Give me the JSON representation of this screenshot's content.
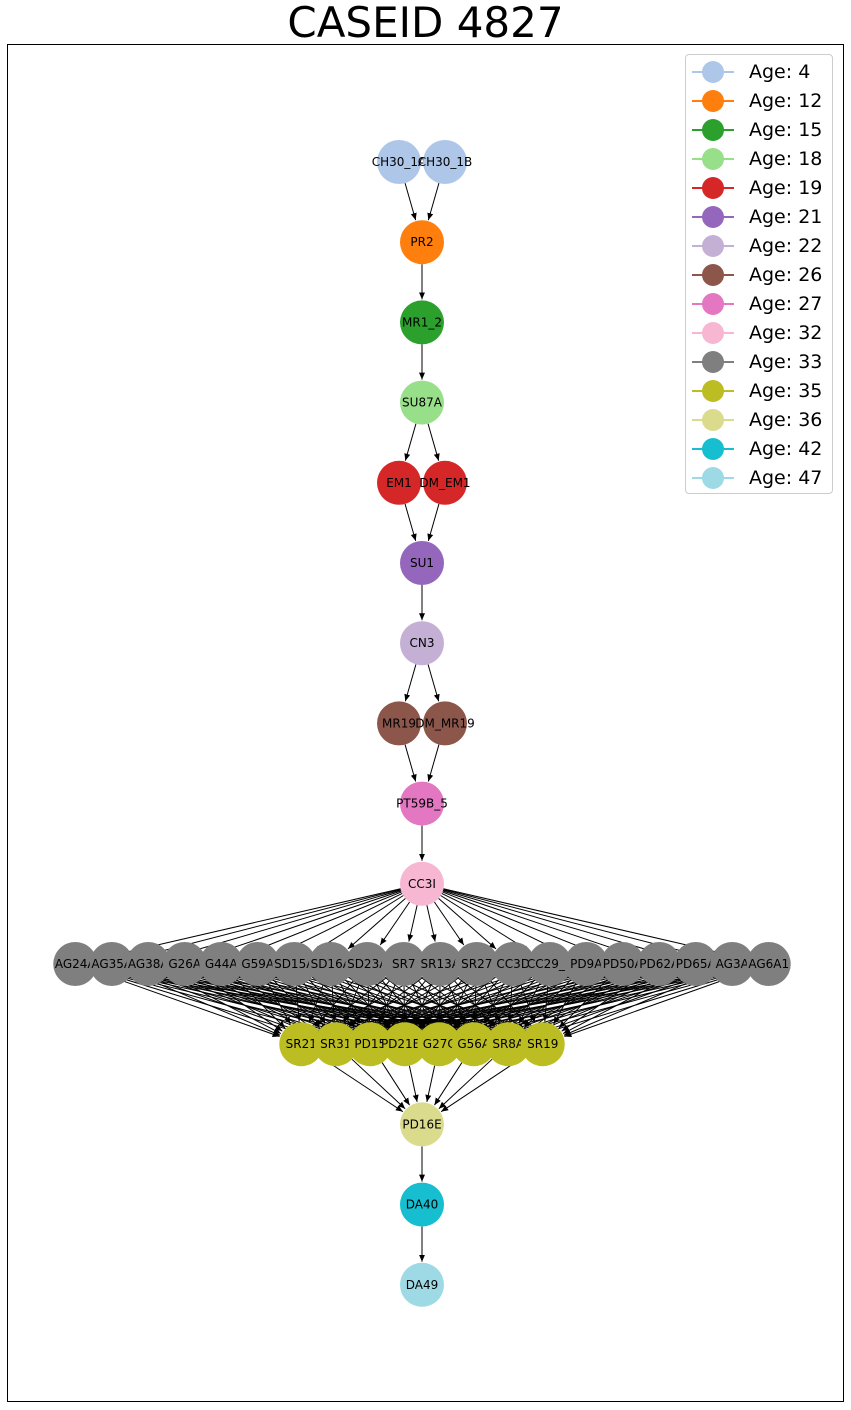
{
  "title": "CASEID 4827",
  "legend": [
    {
      "label": "Age: 4",
      "color": "#aec7e8"
    },
    {
      "label": "Age: 12",
      "color": "#ff7f0e"
    },
    {
      "label": "Age: 15",
      "color": "#2ca02c"
    },
    {
      "label": "Age: 18",
      "color": "#98df8a"
    },
    {
      "label": "Age: 19",
      "color": "#d62728"
    },
    {
      "label": "Age: 21",
      "color": "#9467bd"
    },
    {
      "label": "Age: 22",
      "color": "#c5b0d5"
    },
    {
      "label": "Age: 26",
      "color": "#8c564b"
    },
    {
      "label": "Age: 27",
      "color": "#e377c2"
    },
    {
      "label": "Age: 32",
      "color": "#f7b6d2"
    },
    {
      "label": "Age: 33",
      "color": "#7f7f7f"
    },
    {
      "label": "Age: 35",
      "color": "#bcbd22"
    },
    {
      "label": "Age: 36",
      "color": "#dbdb8d"
    },
    {
      "label": "Age: 42",
      "color": "#17becf"
    },
    {
      "label": "Age: 47",
      "color": "#9edae5"
    }
  ],
  "levels": [
    {
      "age": "Age: 4",
      "nodes": [
        "CH30_1A",
        "CH30_1B"
      ]
    },
    {
      "age": "Age: 12",
      "nodes": [
        "PR2"
      ]
    },
    {
      "age": "Age: 15",
      "nodes": [
        "MR1_2"
      ]
    },
    {
      "age": "Age: 18",
      "nodes": [
        "SU87A"
      ]
    },
    {
      "age": "Age: 19",
      "nodes": [
        "EM1",
        "DM_EM1"
      ]
    },
    {
      "age": "Age: 21",
      "nodes": [
        "SU1"
      ]
    },
    {
      "age": "Age: 22",
      "nodes": [
        "CN3"
      ]
    },
    {
      "age": "Age: 26",
      "nodes": [
        "MR19",
        "DM_MR19"
      ]
    },
    {
      "age": "Age: 27",
      "nodes": [
        "PT59B_5"
      ]
    },
    {
      "age": "Age: 32",
      "nodes": [
        "CC3I"
      ]
    },
    {
      "age": "Age: 33",
      "nodes": [
        "AG24A",
        "AG35A",
        "AG38A",
        "G26A",
        "G44A",
        "G59A",
        "SD15A",
        "SD16A",
        "SD23A",
        "SR7",
        "SR13A",
        "SR27",
        "CC3D",
        "CC29_1",
        "PD9A",
        "PD50A",
        "PD62A",
        "PD65A",
        "AG3A",
        "AG6A1"
      ]
    },
    {
      "age": "Age: 35",
      "nodes": [
        "SR21",
        "SR31",
        "PD15",
        "PD21B1",
        "G27C",
        "G56A",
        "SR8A",
        "SR19"
      ]
    },
    {
      "age": "Age: 36",
      "nodes": [
        "PD16E"
      ]
    },
    {
      "age": "Age: 42",
      "nodes": [
        "DA40"
      ]
    },
    {
      "age": "Age: 47",
      "nodes": [
        "DA49"
      ]
    }
  ],
  "edges_rule": "every node links to every node in the next level"
}
